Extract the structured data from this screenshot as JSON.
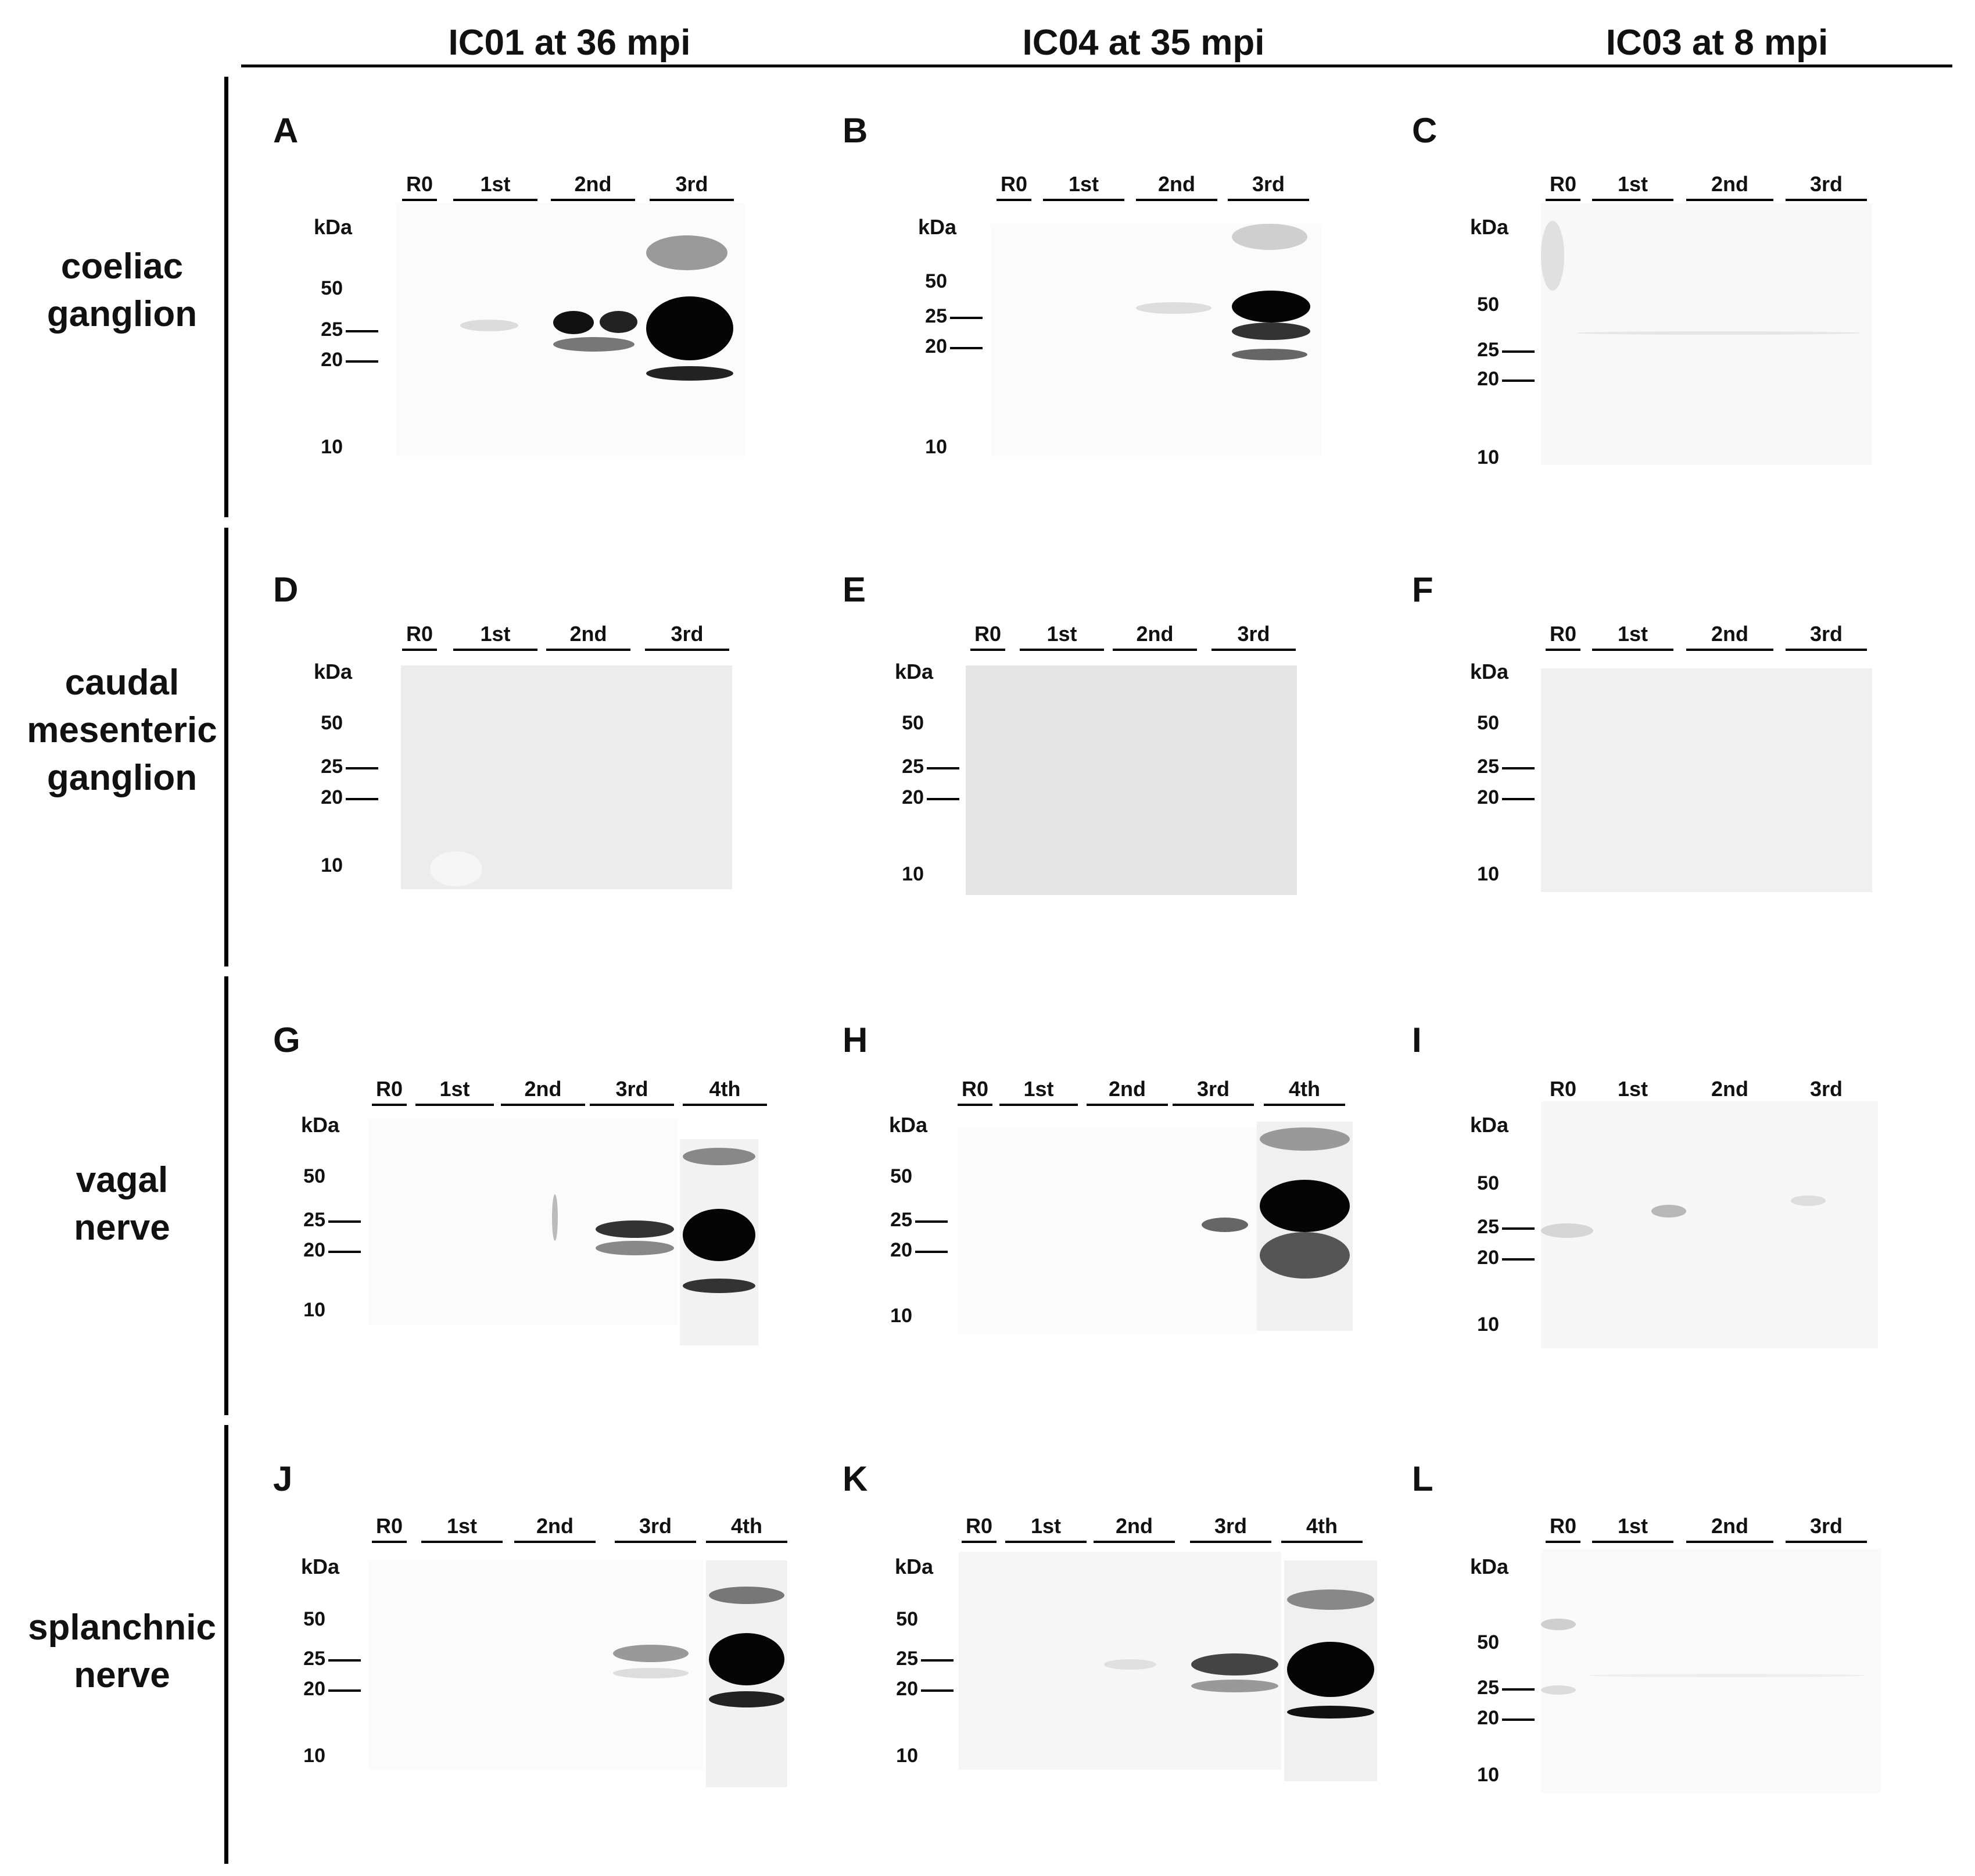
{
  "columns": [
    {
      "label": "IC01 at 36 mpi"
    },
    {
      "label": "IC04 at 35 mpi"
    },
    {
      "label": "IC03 at 8 mpi"
    }
  ],
  "rows": [
    {
      "label_line1": "coeliac",
      "label_line2": "ganglion",
      "label_line3": ""
    },
    {
      "label_line1": "caudal",
      "label_line2": "mesenteric",
      "label_line3": "ganglion"
    },
    {
      "label_line1": "vagal",
      "label_line2": "nerve",
      "label_line3": ""
    },
    {
      "label_line1": "splanchnic",
      "label_line2": "nerve",
      "label_line3": ""
    }
  ],
  "axis": {
    "unit": "kDa",
    "mw50": "50",
    "mw25": "25",
    "mw20": "20",
    "mw10": "10"
  },
  "lanes": {
    "r0": "R0",
    "l1": "1st",
    "l2": "2nd",
    "l3": "3rd",
    "l4": "4th"
  },
  "panels": {
    "A": {
      "letter": "A"
    },
    "B": {
      "letter": "B"
    },
    "C": {
      "letter": "C"
    },
    "D": {
      "letter": "D"
    },
    "E": {
      "letter": "E"
    },
    "F": {
      "letter": "F"
    },
    "G": {
      "letter": "G"
    },
    "H": {
      "letter": "H"
    },
    "I": {
      "letter": "I"
    },
    "J": {
      "letter": "J"
    },
    "K": {
      "letter": "K"
    },
    "L": {
      "letter": "L"
    }
  }
}
